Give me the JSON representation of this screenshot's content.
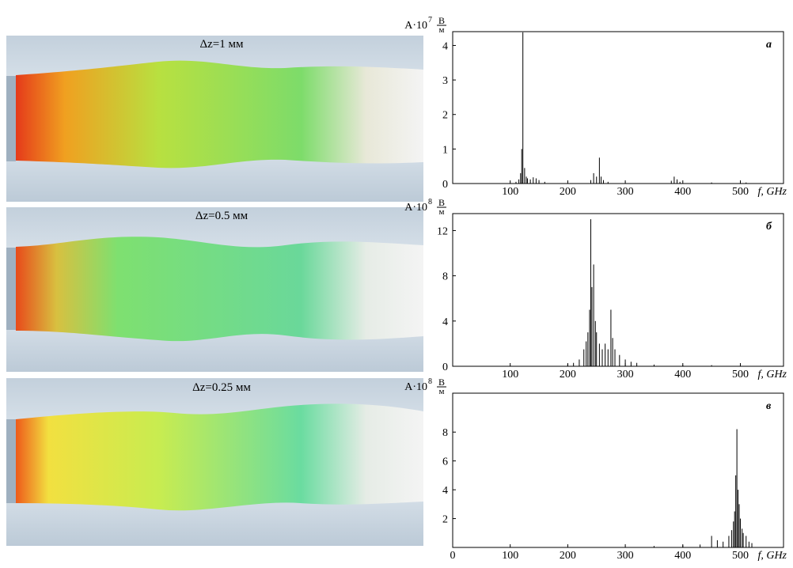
{
  "panels": [
    {
      "label": "Δz=1 мм"
    },
    {
      "label": "Δz=0.5 мм"
    },
    {
      "label": "Δz=0.25 мм"
    }
  ],
  "chart_data": [
    {
      "type": "spectrum",
      "letter": "а",
      "ylabel": "A·10",
      "ylabel_exp": "7",
      "unit_num": "В",
      "unit_den": "м",
      "xlabel": "f, GHz",
      "x": [
        110,
        115,
        118,
        120,
        122,
        125,
        128,
        130,
        135,
        140,
        145,
        150,
        160,
        240,
        245,
        250,
        255,
        258,
        262,
        270,
        380,
        385,
        390,
        395,
        450,
        510
      ],
      "values": [
        0.05,
        0.12,
        0.3,
        1.0,
        4.38,
        0.45,
        0.2,
        0.15,
        0.12,
        0.18,
        0.15,
        0.1,
        0.05,
        0.1,
        0.3,
        0.2,
        0.75,
        0.2,
        0.1,
        0.05,
        0.08,
        0.2,
        0.12,
        0.05,
        0.03,
        0.03
      ],
      "color": "#000000",
      "xlim": [
        0,
        575
      ],
      "ylim": [
        0,
        4.4
      ],
      "xticks": [
        100,
        200,
        300,
        400,
        500
      ],
      "yticks": [
        0,
        1,
        2,
        3,
        4
      ]
    },
    {
      "type": "spectrum",
      "letter": "б",
      "ylabel": "A·10",
      "ylabel_exp": "8",
      "unit_num": "В",
      "unit_den": "м",
      "xlabel": "f, GHz",
      "x": [
        200,
        210,
        220,
        228,
        232,
        235,
        238,
        240,
        242,
        245,
        248,
        250,
        255,
        260,
        265,
        270,
        275,
        278,
        282,
        290,
        300,
        310,
        320,
        350,
        400,
        450,
        500
      ],
      "values": [
        0.2,
        0.3,
        0.6,
        1.5,
        2.2,
        3.0,
        5.0,
        13.0,
        7.0,
        9.0,
        4.0,
        3.0,
        2.0,
        1.5,
        2.0,
        1.5,
        5.0,
        2.5,
        1.5,
        1.0,
        0.6,
        0.4,
        0.3,
        0.15,
        0.1,
        0.1,
        0.2
      ],
      "color": "#000000",
      "xlim": [
        0,
        575
      ],
      "ylim": [
        0,
        13.5
      ],
      "xticks": [
        100,
        200,
        300,
        400,
        500
      ],
      "yticks": [
        0,
        4,
        8,
        12
      ]
    },
    {
      "type": "spectrum",
      "letter": "в",
      "ylabel": "A·10",
      "ylabel_exp": "8",
      "unit_num": "В",
      "unit_den": "м",
      "xlabel": "f, GHz",
      "x": [
        350,
        400,
        430,
        450,
        460,
        470,
        480,
        485,
        488,
        490,
        492,
        494,
        496,
        498,
        500,
        503,
        505,
        510,
        515,
        520
      ],
      "values": [
        0.1,
        0.15,
        0.2,
        0.8,
        0.5,
        0.4,
        0.8,
        1.2,
        1.8,
        2.5,
        5.0,
        8.2,
        4.0,
        3.0,
        2.0,
        1.3,
        1.0,
        0.8,
        0.4,
        0.3
      ],
      "color": "#000000",
      "xlim": [
        0,
        575
      ],
      "ylim": [
        0,
        10.7
      ],
      "xticks": [
        0,
        100,
        200,
        300,
        400,
        500
      ],
      "yticks": [
        2,
        4,
        6,
        8
      ]
    }
  ]
}
